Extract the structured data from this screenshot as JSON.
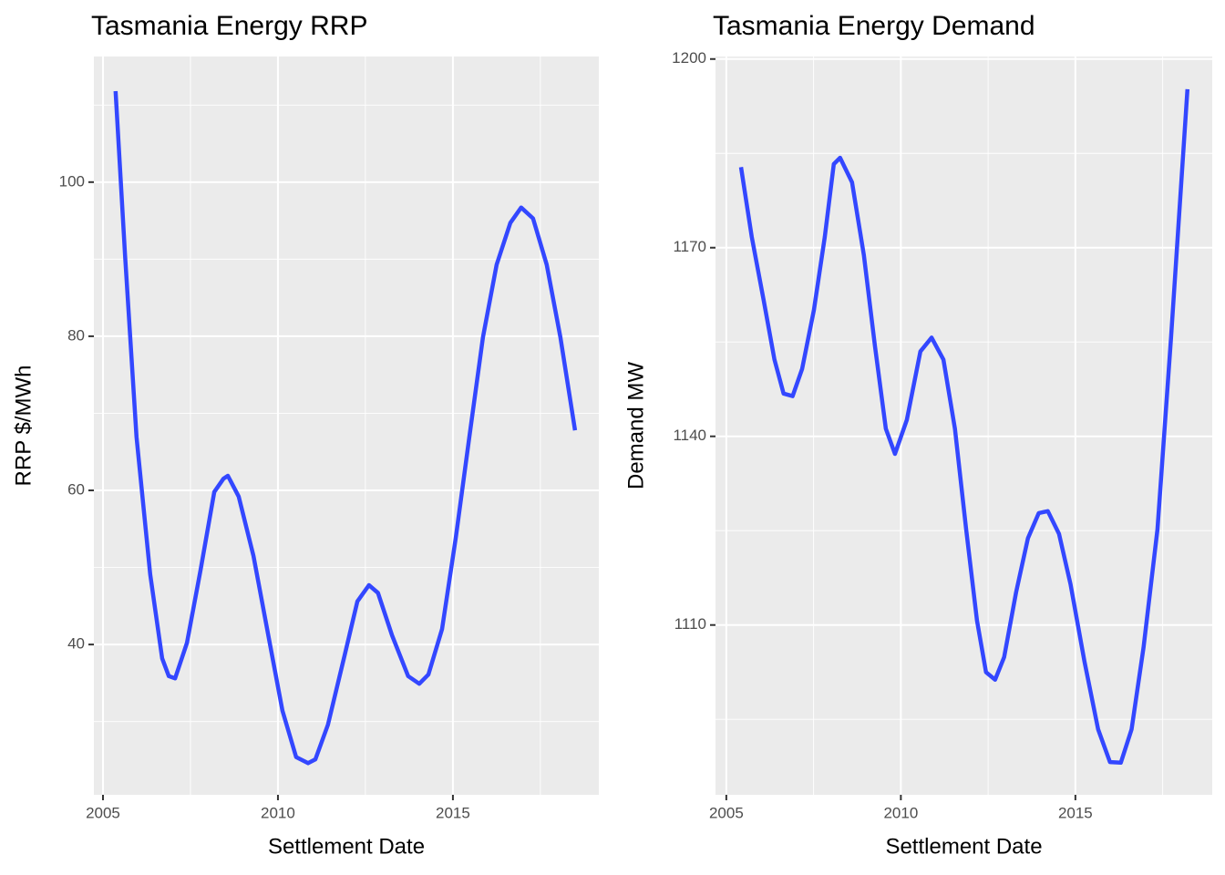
{
  "chart_data": [
    {
      "type": "line",
      "title": "Tasmania Energy RRP",
      "x_label": "Settlement Date",
      "y_label": "RRP $/MWh",
      "x": [
        2005.36,
        2005.63,
        2005.96,
        2006.35,
        2006.69,
        2006.88,
        2007.06,
        2007.4,
        2007.79,
        2008.18,
        2008.44,
        2008.57,
        2008.88,
        2009.3,
        2009.74,
        2010.13,
        2010.52,
        2010.86,
        2011.07,
        2011.43,
        2011.9,
        2012.27,
        2012.6,
        2012.86,
        2013.26,
        2013.72,
        2014.04,
        2014.3,
        2014.69,
        2015.08,
        2015.47,
        2015.86,
        2016.25,
        2016.64,
        2016.95,
        2017.29,
        2017.68,
        2018.07,
        2018.49
      ],
      "values": [
        111.8,
        90.5,
        66.9,
        49.1,
        38.2,
        35.9,
        35.6,
        40.2,
        49.7,
        59.8,
        61.5,
        61.9,
        59.2,
        51.5,
        40.8,
        31.4,
        25.4,
        24.6,
        25.1,
        29.6,
        38.5,
        45.6,
        47.7,
        46.7,
        41.2,
        35.9,
        34.9,
        36.1,
        42.0,
        53.8,
        66.9,
        79.9,
        89.3,
        94.7,
        96.7,
        95.3,
        89.3,
        79.9,
        67.8
      ],
      "color": "#3347ff",
      "grid": true,
      "xlim": [
        2004.74,
        2019.17
      ],
      "xticks": [
        2005,
        2010,
        2015
      ],
      "ylim": [
        20.5,
        116.3
      ],
      "yticks": [
        40,
        60,
        80,
        100
      ]
    },
    {
      "type": "line",
      "title": "Tasmania Energy Demand",
      "x_label": "Settlement Date",
      "y_label": "Demand MW",
      "x": [
        2005.42,
        2005.73,
        2006.07,
        2006.38,
        2006.64,
        2006.9,
        2007.17,
        2007.51,
        2007.82,
        2008.08,
        2008.26,
        2008.6,
        2008.94,
        2009.26,
        2009.57,
        2009.83,
        2010.17,
        2010.56,
        2010.88,
        2011.22,
        2011.55,
        2011.87,
        2012.18,
        2012.44,
        2012.7,
        2012.96,
        2013.3,
        2013.64,
        2013.95,
        2014.21,
        2014.53,
        2014.86,
        2015.26,
        2015.65,
        2015.99,
        2016.3,
        2016.61,
        2016.95,
        2017.35,
        2017.74,
        2018.21
      ],
      "values": [
        1182.8,
        1171.7,
        1161.6,
        1152.2,
        1146.8,
        1146.4,
        1150.7,
        1160.1,
        1171.7,
        1183.3,
        1184.3,
        1180.4,
        1168.8,
        1154.3,
        1141.2,
        1137.2,
        1142.6,
        1153.5,
        1155.7,
        1152.2,
        1141.2,
        1125.2,
        1110.7,
        1102.5,
        1101.3,
        1104.9,
        1115.2,
        1123.8,
        1127.8,
        1128.1,
        1124.5,
        1116.5,
        1104.2,
        1093.4,
        1088.2,
        1088.1,
        1093.4,
        1106.4,
        1125.2,
        1155.7,
        1195.2
      ],
      "color": "#3347ff",
      "grid": true,
      "xlim": [
        2004.69,
        2018.92
      ],
      "xticks": [
        2005,
        2010,
        2015
      ],
      "ylim": [
        1083.0,
        1200.4
      ],
      "yticks": [
        1110,
        1140,
        1170,
        1200
      ]
    }
  ]
}
